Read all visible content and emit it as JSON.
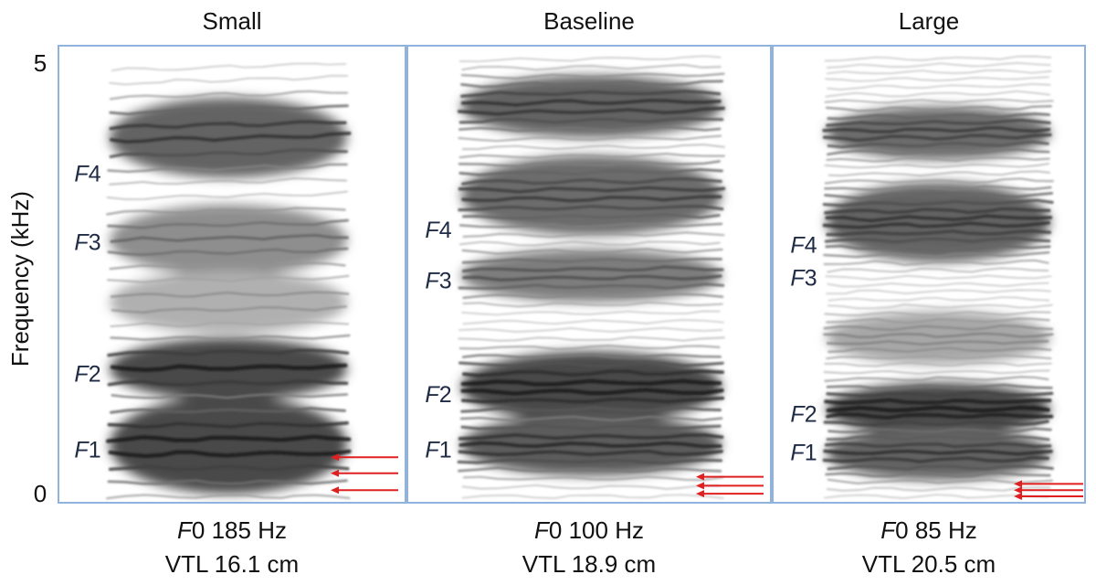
{
  "figure": {
    "y_axis": {
      "label": "Frequency (kHz)",
      "ticks": [
        "5",
        "0"
      ],
      "range_khz": [
        0,
        5
      ]
    },
    "colors": {
      "panel_border": "#8fb3dc",
      "formant_label": "#1f2a44",
      "harmonic_arrow": "#e02020",
      "spectrogram_ink": "#1a1a1a"
    },
    "panels": [
      {
        "title": "Small",
        "f0_prefix": "F",
        "f0_text": "0 185 Hz",
        "vtl_text": "VTL 16.1 cm",
        "formant_labels": [
          {
            "letter": "F",
            "num": "4",
            "khz": 3.65
          },
          {
            "letter": "F",
            "num": "3",
            "khz": 2.88
          },
          {
            "letter": "F",
            "num": "2",
            "khz": 1.4
          },
          {
            "letter": "F",
            "num": "1",
            "khz": 0.55
          }
        ],
        "harmonic_arrows_khz": [
          0.46,
          0.28,
          0.09
        ]
      },
      {
        "title": "Baseline",
        "f0_prefix": "F",
        "f0_text": "0 100 Hz",
        "vtl_text": "VTL 18.9 cm",
        "formant_labels": [
          {
            "letter": "F",
            "num": "4",
            "khz": 3.02
          },
          {
            "letter": "F",
            "num": "3",
            "khz": 2.45
          },
          {
            "letter": "F",
            "num": "2",
            "khz": 1.17
          },
          {
            "letter": "F",
            "num": "1",
            "khz": 0.55
          }
        ],
        "harmonic_arrows_khz": [
          0.24,
          0.14,
          0.05
        ]
      },
      {
        "title": "Large",
        "f0_prefix": "F",
        "f0_text": "0 85 Hz",
        "vtl_text": "VTL 20.5 cm",
        "formant_labels": [
          {
            "letter": "F",
            "num": "4",
            "khz": 2.85
          },
          {
            "letter": "F",
            "num": "3",
            "khz": 2.48
          },
          {
            "letter": "F",
            "num": "2",
            "khz": 0.95
          },
          {
            "letter": "F",
            "num": "1",
            "khz": 0.52
          }
        ],
        "harmonic_arrows_khz": [
          0.16,
          0.09,
          0.02
        ]
      }
    ]
  }
}
